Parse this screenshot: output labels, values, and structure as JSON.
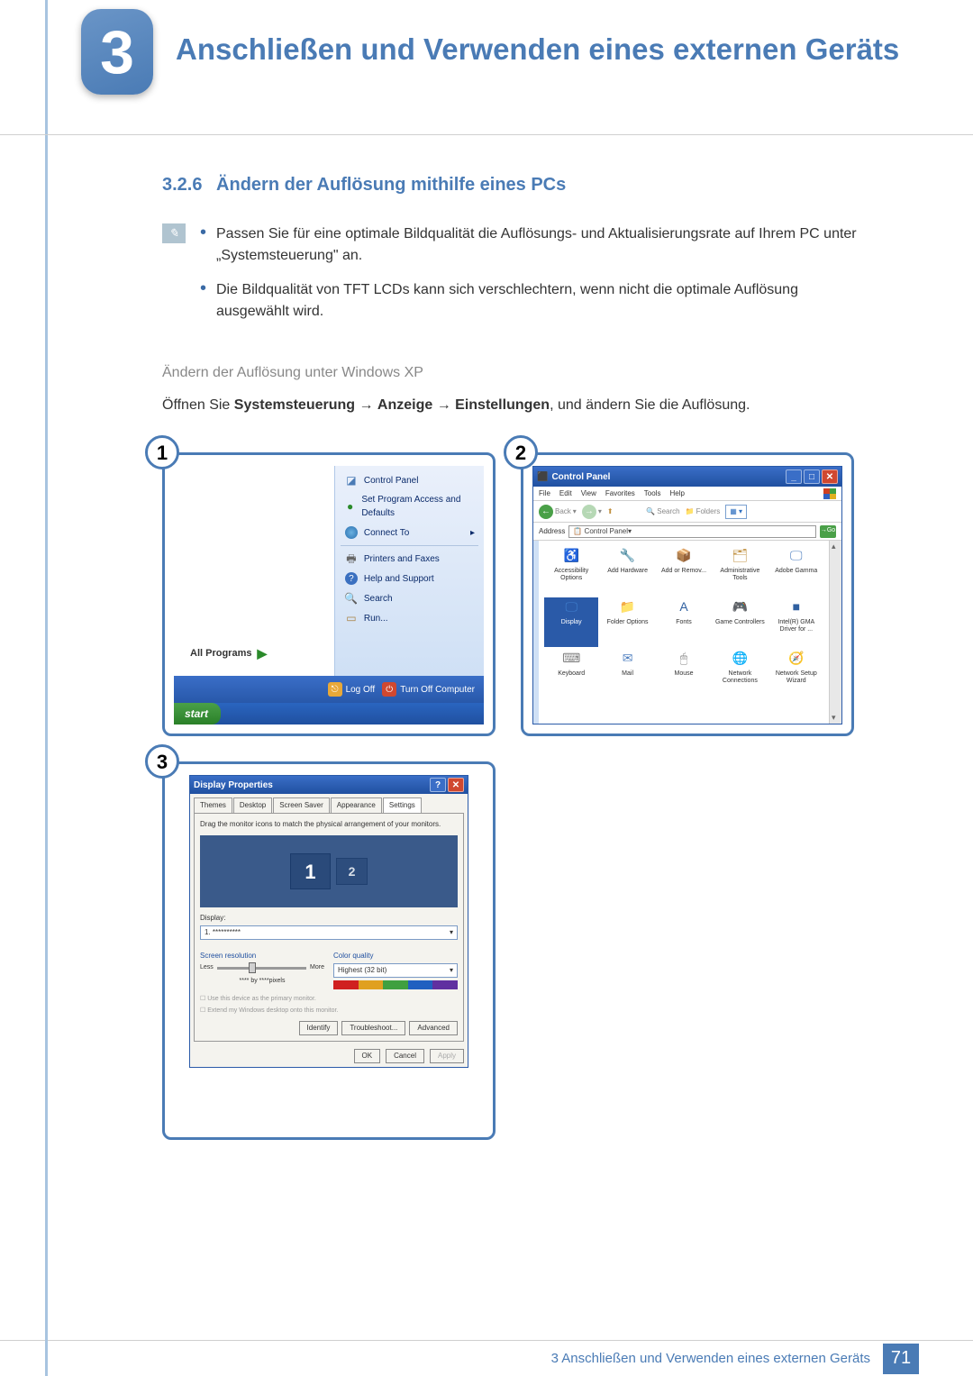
{
  "chapter": {
    "number": "3",
    "title": "Anschließen und Verwenden eines externen Geräts"
  },
  "section": {
    "number": "3.2.6",
    "heading": "Ändern der Auflösung mithilfe eines PCs"
  },
  "bullets": [
    "Passen Sie für eine optimale Bildqualität die Auflösungs- und Aktualisierungsrate auf Ihrem PC unter „Systemsteuerung\" an.",
    "Die Bildqualität von TFT LCDs kann sich verschlechtern, wenn nicht die optimale Auflösung ausgewählt wird."
  ],
  "sub_heading": "Ändern der Auflösung unter Windows XP",
  "instruction": {
    "pre": "Öffnen Sie ",
    "b1": "Systemsteuerung",
    "arr": " → ",
    "b2": "Anzeige",
    "b3": "Einstellungen",
    "post": ", und ändern Sie die Auflösung."
  },
  "fig1": {
    "badge": "1",
    "right_items": [
      {
        "icon": "shield",
        "label": "Control Panel"
      },
      {
        "icon": "green-ball",
        "label": "Set Program Access and Defaults"
      },
      {
        "icon": "globe",
        "label": "Connect To",
        "arrow": "▸"
      },
      {
        "icon": "printer",
        "label": "Printers and Faxes"
      },
      {
        "icon": "help",
        "label": "Help and Support"
      },
      {
        "icon": "search",
        "label": "Search"
      },
      {
        "icon": "run",
        "label": "Run..."
      }
    ],
    "all_programs": "All Programs",
    "log_off": "Log Off",
    "turn_off": "Turn Off Computer",
    "start": "start"
  },
  "fig2": {
    "badge": "2",
    "title": "Control Panel",
    "menus": [
      "File",
      "Edit",
      "View",
      "Favorites",
      "Tools",
      "Help"
    ],
    "back": "Back",
    "search": "Search",
    "folders": "Folders",
    "addr_label": "Address",
    "addr_text": "Control Panel",
    "go": "Go",
    "items": [
      {
        "label": "Accessibility Options",
        "glyph": "♿",
        "color": "#3a8a3a"
      },
      {
        "label": "Add Hardware",
        "glyph": "🔧",
        "color": "#8a8a3a"
      },
      {
        "label": "Add or Remov...",
        "glyph": "📦",
        "color": "#b07030"
      },
      {
        "label": "Administrative Tools",
        "glyph": "🗂",
        "color": "#c09040"
      },
      {
        "label": "Adobe Gamma",
        "glyph": "🖵",
        "color": "#5080c0"
      },
      {
        "label": "Display",
        "glyph": "🖵",
        "color": "#4080d0",
        "sel": true
      },
      {
        "label": "Folder Options",
        "glyph": "📁",
        "color": "#c09040"
      },
      {
        "label": "Fonts",
        "glyph": "A",
        "color": "#3060a0"
      },
      {
        "label": "Game Controllers",
        "glyph": "🎮",
        "color": "#808080"
      },
      {
        "label": "Intel(R) GMA Driver for ...",
        "glyph": "■",
        "color": "#3060a0"
      },
      {
        "label": "Keyboard",
        "glyph": "⌨",
        "color": "#808080"
      },
      {
        "label": "Mail",
        "glyph": "✉",
        "color": "#5080c0"
      },
      {
        "label": "Mouse",
        "glyph": "🖱",
        "color": "#808080"
      },
      {
        "label": "Network Connections",
        "glyph": "🌐",
        "color": "#3080c0"
      },
      {
        "label": "Network Setup Wizard",
        "glyph": "🧭",
        "color": "#3080c0"
      }
    ]
  },
  "fig3": {
    "badge": "3",
    "title": "Display Properties",
    "tabs": [
      "Themes",
      "Desktop",
      "Screen Saver",
      "Appearance",
      "Settings"
    ],
    "active_tab": "Settings",
    "hint": "Drag the monitor icons to match the physical arrangement of your monitors.",
    "mon1": "1",
    "mon2": "2",
    "display_label": "Display:",
    "display_value": "1. **********",
    "sr_label": "Screen resolution",
    "sr_less": "Less",
    "sr_more": "More",
    "sr_value": "**** by ****pixels",
    "cq_label": "Color quality",
    "cq_value": "Highest (32 bit)",
    "cq_colors": [
      "#d02020",
      "#e0a020",
      "#40a040",
      "#2060c0",
      "#6030a0"
    ],
    "check1": "Use this device as the primary monitor.",
    "check2": "Extend my Windows desktop onto this monitor.",
    "btn_identify": "Identify",
    "btn_trouble": "Troubleshoot...",
    "btn_advanced": "Advanced",
    "btn_ok": "OK",
    "btn_cancel": "Cancel",
    "btn_apply": "Apply"
  },
  "footer": {
    "chapter_label": "3 Anschließen und Verwenden eines externen Geräts",
    "page": "71"
  }
}
